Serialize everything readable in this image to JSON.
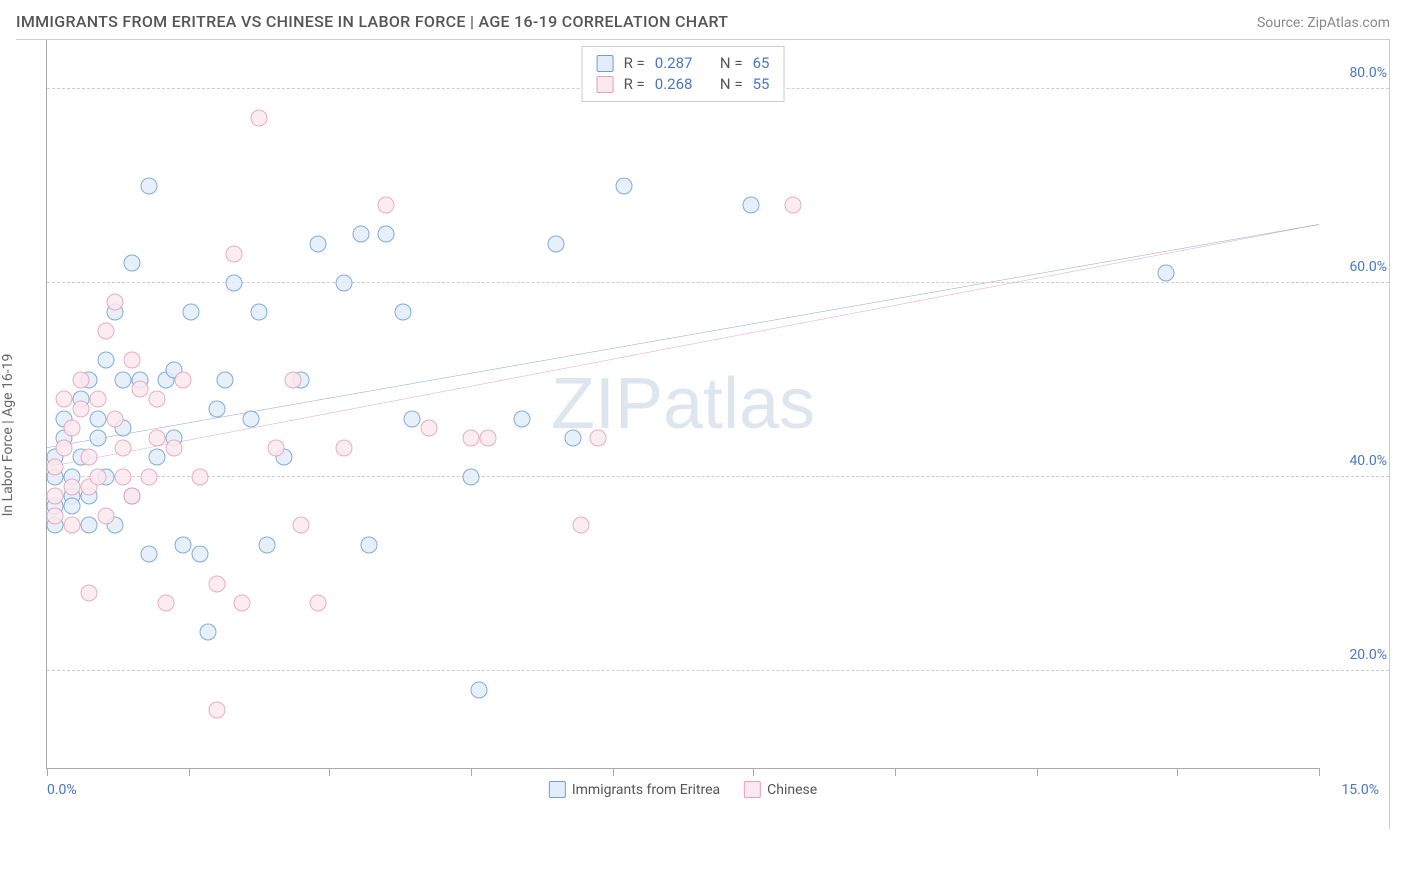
{
  "header": {
    "title": "IMMIGRANTS FROM ERITREA VS CHINESE IN LABOR FORCE | AGE 16-19 CORRELATION CHART",
    "source": "Source: ZipAtlas.com"
  },
  "watermark": "ZIPatlas",
  "y_axis": {
    "label": "In Labor Force | Age 16-19",
    "min": 10,
    "max": 85,
    "ticks": [
      20,
      40,
      60,
      80
    ],
    "tick_labels": [
      "20.0%",
      "40.0%",
      "60.0%",
      "80.0%"
    ],
    "tick_color": "#4a76c7",
    "grid_color": "#cccccc"
  },
  "x_axis": {
    "min": 0,
    "max": 15,
    "tick_positions": [
      0,
      1.67,
      3.33,
      5.0,
      6.67,
      8.33,
      10.0,
      11.67,
      13.33,
      15.0
    ],
    "label_left": "0.0%",
    "label_right": "15.0%",
    "label_color": "#4a76c7"
  },
  "series": [
    {
      "key": "eritrea",
      "name": "Immigrants from Eritrea",
      "fill": "#e3edf9",
      "stroke": "#6a9fd4",
      "r": 0.287,
      "n": 65,
      "trend": {
        "color": "#2a5db0",
        "width": 2,
        "y_at_x0": 43,
        "y_at_x15": 66
      },
      "points": [
        [
          0.1,
          35
        ],
        [
          0.1,
          37
        ],
        [
          0.1,
          40
        ],
        [
          0.1,
          42
        ],
        [
          0.2,
          44
        ],
        [
          0.2,
          46
        ],
        [
          0.3,
          38
        ],
        [
          0.3,
          40
        ],
        [
          0.3,
          37
        ],
        [
          0.4,
          48
        ],
        [
          0.4,
          42
        ],
        [
          0.5,
          50
        ],
        [
          0.5,
          38
        ],
        [
          0.5,
          35
        ],
        [
          0.6,
          44
        ],
        [
          0.6,
          46
        ],
        [
          0.7,
          52
        ],
        [
          0.7,
          40
        ],
        [
          0.8,
          35
        ],
        [
          0.8,
          57
        ],
        [
          0.9,
          45
        ],
        [
          0.9,
          50
        ],
        [
          1.0,
          62
        ],
        [
          1.0,
          38
        ],
        [
          1.1,
          50
        ],
        [
          1.2,
          70
        ],
        [
          1.2,
          32
        ],
        [
          1.3,
          42
        ],
        [
          1.4,
          50
        ],
        [
          1.5,
          44
        ],
        [
          1.5,
          51
        ],
        [
          1.6,
          33
        ],
        [
          1.7,
          57
        ],
        [
          1.8,
          32
        ],
        [
          1.9,
          24
        ],
        [
          2.0,
          47
        ],
        [
          2.1,
          50
        ],
        [
          2.2,
          60
        ],
        [
          2.4,
          46
        ],
        [
          2.5,
          57
        ],
        [
          2.6,
          33
        ],
        [
          2.8,
          42
        ],
        [
          3.0,
          50
        ],
        [
          3.2,
          64
        ],
        [
          3.5,
          60
        ],
        [
          3.7,
          65
        ],
        [
          3.8,
          33
        ],
        [
          4.0,
          65
        ],
        [
          4.2,
          57
        ],
        [
          4.3,
          46
        ],
        [
          5.0,
          40
        ],
        [
          5.1,
          18
        ],
        [
          5.6,
          46
        ],
        [
          6.0,
          64
        ],
        [
          6.2,
          44
        ],
        [
          6.8,
          70
        ],
        [
          8.3,
          68
        ],
        [
          13.2,
          61
        ]
      ]
    },
    {
      "key": "chinese",
      "name": "Chinese",
      "fill": "#fbe9ef",
      "stroke": "#e79fb4",
      "r": 0.268,
      "n": 55,
      "trend": {
        "color": "#d15a8a",
        "width": 2,
        "y_at_x0": 41,
        "y_at_x15": 66
      },
      "points": [
        [
          0.1,
          36
        ],
        [
          0.1,
          38
        ],
        [
          0.1,
          41
        ],
        [
          0.2,
          48
        ],
        [
          0.2,
          43
        ],
        [
          0.3,
          35
        ],
        [
          0.3,
          45
        ],
        [
          0.3,
          39
        ],
        [
          0.4,
          47
        ],
        [
          0.4,
          50
        ],
        [
          0.5,
          42
        ],
        [
          0.5,
          39
        ],
        [
          0.5,
          28
        ],
        [
          0.6,
          48
        ],
        [
          0.6,
          40
        ],
        [
          0.7,
          36
        ],
        [
          0.7,
          55
        ],
        [
          0.8,
          58
        ],
        [
          0.8,
          46
        ],
        [
          0.9,
          40
        ],
        [
          0.9,
          43
        ],
        [
          1.0,
          52
        ],
        [
          1.0,
          38
        ],
        [
          1.1,
          49
        ],
        [
          1.2,
          40
        ],
        [
          1.3,
          44
        ],
        [
          1.3,
          48
        ],
        [
          1.4,
          27
        ],
        [
          1.5,
          43
        ],
        [
          1.6,
          50
        ],
        [
          1.8,
          40
        ],
        [
          2.0,
          29
        ],
        [
          2.0,
          16
        ],
        [
          2.2,
          63
        ],
        [
          2.3,
          27
        ],
        [
          2.5,
          77
        ],
        [
          2.7,
          43
        ],
        [
          2.9,
          50
        ],
        [
          3.0,
          35
        ],
        [
          3.2,
          27
        ],
        [
          3.5,
          43
        ],
        [
          4.0,
          68
        ],
        [
          4.5,
          45
        ],
        [
          5.0,
          44
        ],
        [
          5.2,
          44
        ],
        [
          6.3,
          35
        ],
        [
          6.5,
          44
        ],
        [
          8.8,
          68
        ]
      ]
    }
  ],
  "legend": {
    "r_label": "R =",
    "n_label": "N ="
  },
  "colors": {
    "title": "#555555",
    "source": "#888888",
    "axis_line": "#aaaaaa",
    "num": "#4a76c7",
    "watermark": "#6a8fb5"
  },
  "typography": {
    "title_size": 16,
    "axis_label_size": 14,
    "tick_size": 14,
    "legend_size": 15,
    "watermark_size": 72
  }
}
